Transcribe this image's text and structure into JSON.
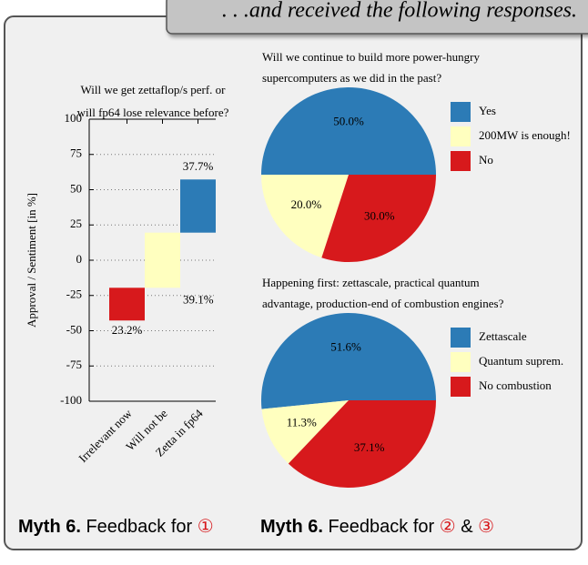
{
  "header": {
    "text": ". . .and received the following responses."
  },
  "chart_data": [
    {
      "type": "diverging-bar",
      "title": [
        "Will we get zettaflop/s perf. or",
        "will fp64 lose relevance before?"
      ],
      "ylabel": "Approval / Sentiment [in %]",
      "categories": [
        "Irrelevant now",
        "Will not be",
        "Zetta in fp64"
      ],
      "values": [
        23.2,
        39.1,
        37.7
      ],
      "value_labels": [
        "23.2%",
        "39.1%",
        "37.7%"
      ],
      "colors": [
        "#d7191c",
        "#ffffbf",
        "#2c7bb6"
      ],
      "ylim": [
        -100,
        100
      ],
      "yticks": [
        -100,
        -75,
        -50,
        -25,
        0,
        25,
        50,
        75,
        100
      ],
      "grid": true
    },
    {
      "type": "pie",
      "title": [
        "Will we continue to build more power-hungry",
        "supercomputers as we did in the past?"
      ],
      "categories": [
        "Yes",
        "200MW is enough!",
        "No"
      ],
      "values": [
        50.0,
        20.0,
        30.0
      ],
      "value_labels": [
        "50.0%",
        "20.0%",
        "30.0%"
      ],
      "colors": [
        "#2c7bb6",
        "#ffffbf",
        "#d7191c"
      ]
    },
    {
      "type": "pie",
      "title": [
        "Happening first: zettascale, practical quantum",
        "advantage, production-end of combustion engines?"
      ],
      "categories": [
        "Zettascale",
        "Quantum suprem.",
        "No combustion"
      ],
      "values": [
        51.6,
        11.3,
        37.1
      ],
      "value_labels": [
        "51.6%",
        "11.3%",
        "37.1%"
      ],
      "colors": [
        "#2c7bb6",
        "#ffffbf",
        "#d7191c"
      ]
    }
  ],
  "captions": [
    {
      "label": "Myth 6.",
      "text": "Feedback for",
      "refs": [
        "①"
      ]
    },
    {
      "label": "Myth 6.",
      "text": "Feedback for",
      "refs": [
        "②",
        "③"
      ],
      "joiner": "&"
    }
  ]
}
